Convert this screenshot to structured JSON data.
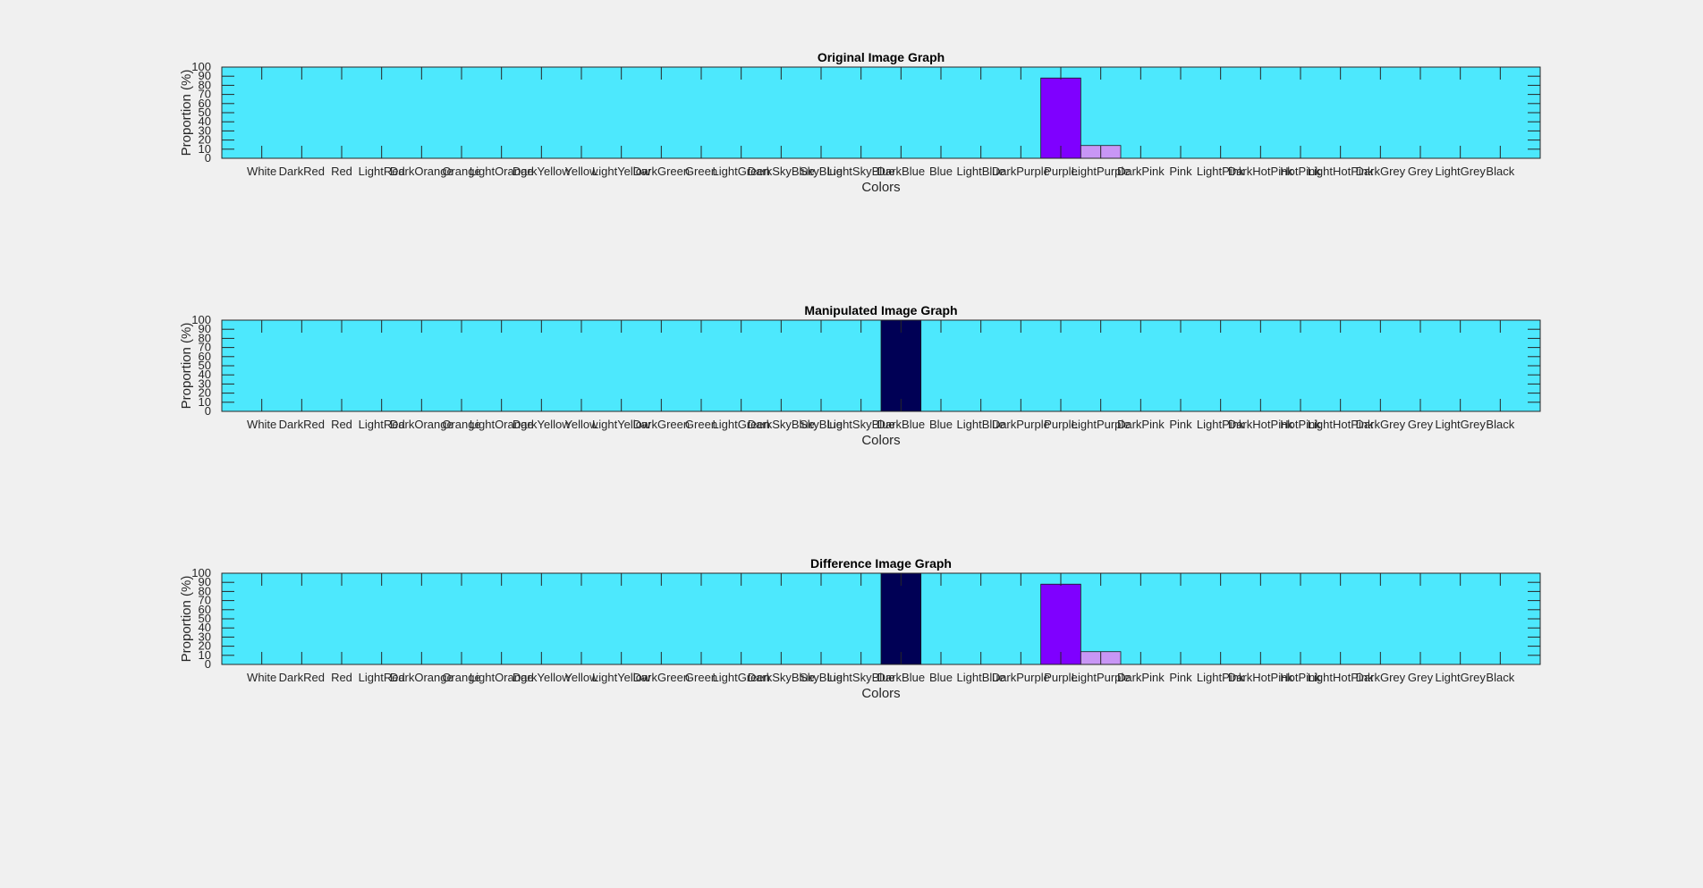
{
  "figure": {
    "background": "#f0f0f0",
    "plot_background": "#4de8fd"
  },
  "chart_data": [
    {
      "type": "bar",
      "title": "Original Image Graph",
      "xlabel": "Colors",
      "ylabel": "Proportion (%)",
      "ylim": [
        0,
        100
      ],
      "yticks": [
        0,
        10,
        20,
        30,
        40,
        50,
        60,
        70,
        80,
        90,
        100
      ],
      "categories": [
        "White",
        "DarkRed",
        "Red",
        "LightRed",
        "DarkOrange",
        "Orange",
        "LightOrange",
        "DarkYellow",
        "Yellow",
        "LightYellow",
        "DarkGreen",
        "Green",
        "LightGreen",
        "DarkSkyBlue",
        "SkyBlue",
        "LightSkyBlue",
        "DarkBlue",
        "Blue",
        "LightBlue",
        "DarkPurple",
        "Purple",
        "LightPurple",
        "DarkPink",
        "Pink",
        "LightPink",
        "DarkHotPink",
        "HotPink",
        "LightHotPink",
        "DarkGrey",
        "Grey",
        "LightGrey",
        "Black"
      ],
      "values": [
        0,
        0,
        0,
        0,
        0,
        0,
        0,
        0,
        0,
        0,
        0,
        0,
        0,
        0,
        0,
        0,
        0,
        0,
        0,
        0,
        88,
        14,
        0,
        0,
        0,
        0,
        0,
        0,
        0,
        0,
        0,
        0
      ],
      "bar_colors": {
        "DarkBlue": "#000055",
        "Purple": "#7f00ff",
        "LightPurple": "#c896f5"
      },
      "grid": false,
      "legend": false
    },
    {
      "type": "bar",
      "title": "Manipulated Image Graph",
      "xlabel": "Colors",
      "ylabel": "Proportion (%)",
      "ylim": [
        0,
        100
      ],
      "yticks": [
        0,
        10,
        20,
        30,
        40,
        50,
        60,
        70,
        80,
        90,
        100
      ],
      "categories": [
        "White",
        "DarkRed",
        "Red",
        "LightRed",
        "DarkOrange",
        "Orange",
        "LightOrange",
        "DarkYellow",
        "Yellow",
        "LightYellow",
        "DarkGreen",
        "Green",
        "LightGreen",
        "DarkSkyBlue",
        "SkyBlue",
        "LightSkyBlue",
        "DarkBlue",
        "Blue",
        "LightBlue",
        "DarkPurple",
        "Purple",
        "LightPurple",
        "DarkPink",
        "Pink",
        "LightPink",
        "DarkHotPink",
        "HotPink",
        "LightHotPink",
        "DarkGrey",
        "Grey",
        "LightGrey",
        "Black"
      ],
      "values": [
        0,
        0,
        0,
        0,
        0,
        0,
        0,
        0,
        0,
        0,
        0,
        0,
        0,
        0,
        0,
        0,
        100,
        0,
        0,
        0,
        0,
        0,
        0,
        0,
        0,
        0,
        0,
        0,
        0,
        0,
        0,
        0
      ],
      "bar_colors": {
        "DarkBlue": "#000055",
        "Purple": "#7f00ff",
        "LightPurple": "#c896f5"
      },
      "grid": false,
      "legend": false
    },
    {
      "type": "bar",
      "title": "Difference Image Graph",
      "xlabel": "Colors",
      "ylabel": "Proportion (%)",
      "ylim": [
        0,
        100
      ],
      "yticks": [
        0,
        10,
        20,
        30,
        40,
        50,
        60,
        70,
        80,
        90,
        100
      ],
      "categories": [
        "White",
        "DarkRed",
        "Red",
        "LightRed",
        "DarkOrange",
        "Orange",
        "LightOrange",
        "DarkYellow",
        "Yellow",
        "LightYellow",
        "DarkGreen",
        "Green",
        "LightGreen",
        "DarkSkyBlue",
        "SkyBlue",
        "LightSkyBlue",
        "DarkBlue",
        "Blue",
        "LightBlue",
        "DarkPurple",
        "Purple",
        "LightPurple",
        "DarkPink",
        "Pink",
        "LightPink",
        "DarkHotPink",
        "HotPink",
        "LightHotPink",
        "DarkGrey",
        "Grey",
        "LightGrey",
        "Black"
      ],
      "values": [
        0,
        0,
        0,
        0,
        0,
        0,
        0,
        0,
        0,
        0,
        0,
        0,
        0,
        0,
        0,
        0,
        100,
        0,
        0,
        0,
        88,
        14,
        0,
        0,
        0,
        0,
        0,
        0,
        0,
        0,
        0,
        0
      ],
      "bar_colors": {
        "DarkBlue": "#000055",
        "Purple": "#7f00ff",
        "LightPurple": "#c896f5"
      },
      "grid": false,
      "legend": false
    }
  ]
}
